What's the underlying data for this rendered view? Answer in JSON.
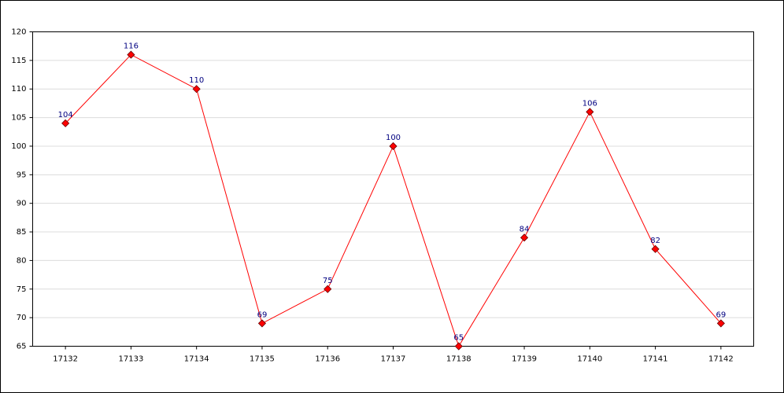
{
  "chart_data": {
    "type": "line",
    "categories": [
      "17132",
      "17133",
      "17134",
      "17135",
      "17136",
      "17137",
      "17138",
      "17139",
      "17140",
      "17141",
      "17142"
    ],
    "series": [
      {
        "name": "values",
        "color": "#ff0000",
        "values": [
          104,
          116,
          110,
          69,
          75,
          100,
          65,
          84,
          106,
          82,
          69
        ]
      }
    ],
    "ylim": [
      65,
      120
    ],
    "yticks": [
      65,
      70,
      75,
      80,
      85,
      90,
      95,
      100,
      105,
      110,
      115,
      120
    ],
    "grid": true
  }
}
